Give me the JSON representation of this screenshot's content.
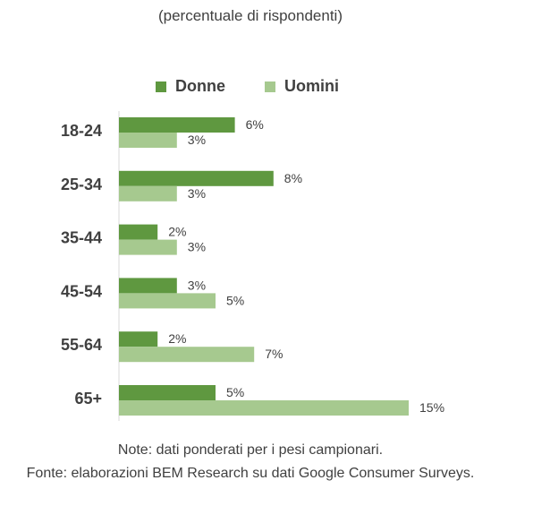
{
  "chart_data": {
    "type": "bar",
    "orientation": "horizontal",
    "subtitle": "(percentuale di rispondenti)",
    "categories": [
      "18-24",
      "25-34",
      "35-44",
      "45-54",
      "55-64",
      "65+"
    ],
    "series": [
      {
        "name": "Donne",
        "color": "#5f9840",
        "values": [
          6,
          8,
          2,
          3,
          2,
          5
        ],
        "labels": [
          "6%",
          "8%",
          "2%",
          "3%",
          "2%",
          "5%"
        ]
      },
      {
        "name": "Uomini",
        "color": "#a6c98f",
        "values": [
          3,
          3,
          3,
          5,
          7,
          15
        ],
        "labels": [
          "3%",
          "3%",
          "3%",
          "5%",
          "7%",
          "15%"
        ]
      }
    ],
    "legend_position": "top",
    "grid": false,
    "xlim": [
      0,
      15
    ]
  },
  "footnote": {
    "note": "Note: dati ponderati per i pesi campionari.",
    "source": "Fonte: elaborazioni BEM Research su dati Google Consumer Surveys."
  }
}
